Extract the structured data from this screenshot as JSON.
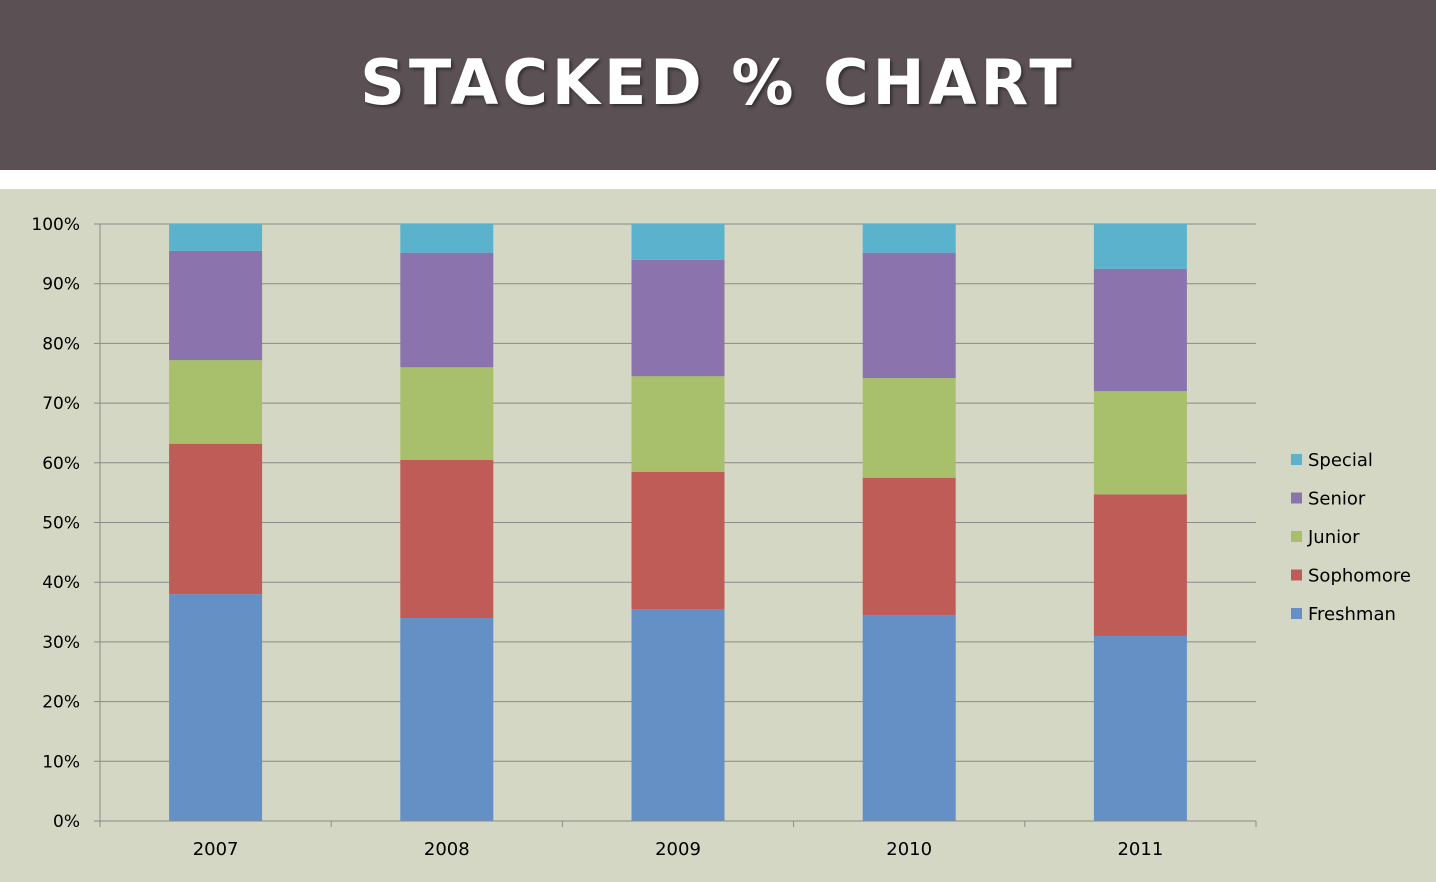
{
  "slide": {
    "title": "STACKED % CHART"
  },
  "chart_data": {
    "type": "bar",
    "stacked": "percent",
    "categories": [
      "2007",
      "2008",
      "2009",
      "2010",
      "2011"
    ],
    "series": [
      {
        "name": "Freshman",
        "color": "#6590c6",
        "values": [
          38,
          34,
          35.5,
          34.5,
          31
        ]
      },
      {
        "name": "Sophomore",
        "color": "#c05c58",
        "values": [
          25.2,
          26.5,
          23,
          23,
          23.7
        ]
      },
      {
        "name": "Junior",
        "color": "#a8bf6b",
        "values": [
          14,
          15.5,
          16,
          16.7,
          17.3
        ]
      },
      {
        "name": "Senior",
        "color": "#8b74ad",
        "values": [
          18.3,
          19.2,
          19.5,
          21,
          20.5
        ]
      },
      {
        "name": "Special",
        "color": "#5bb2cd",
        "values": [
          4.5,
          4.8,
          6,
          4.8,
          7.5
        ]
      }
    ],
    "y_ticks": [
      "0%",
      "10%",
      "20%",
      "30%",
      "40%",
      "50%",
      "60%",
      "70%",
      "80%",
      "90%",
      "100%"
    ],
    "ylim": [
      0,
      100
    ],
    "grid": true,
    "legend": "right",
    "legend_order": [
      "Special",
      "Senior",
      "Junior",
      "Sophomore",
      "Freshman"
    ]
  }
}
